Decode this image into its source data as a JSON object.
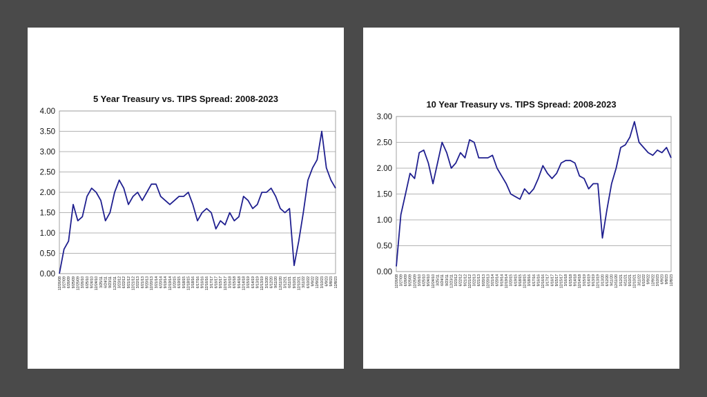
{
  "chart_data": [
    {
      "type": "line",
      "title": "5 Year Treasury vs. TIPS Spread: 2008-2023",
      "xlabel": "",
      "ylabel": "",
      "ylim": [
        0,
        4
      ],
      "yticks": [
        "0.00",
        "0.50",
        "1.00",
        "1.50",
        "2.00",
        "2.50",
        "3.00",
        "3.50",
        "4.00"
      ],
      "grid": true,
      "legend": "none",
      "line_color": "#1f1f8f",
      "x_tick_labels": [
        "12/26/08",
        "3/27/09",
        "6/26/09",
        "9/25/09",
        "12/25/09",
        "3/26/10",
        "6/25/10",
        "9/24/10",
        "12/24/10",
        "3/25/11",
        "6/24/11",
        "9/23/11",
        "12/23/11",
        "3/23/12",
        "6/22/12",
        "9/21/12",
        "12/21/12",
        "3/22/13",
        "6/21/13",
        "9/20/13",
        "12/20/13",
        "3/21/14",
        "6/20/14",
        "9/19/14",
        "12/19/14",
        "3/20/15",
        "6/19/15",
        "9/18/15",
        "12/18/15",
        "3/18/16",
        "6/17/16",
        "9/16/16",
        "12/16/16",
        "3/17/17",
        "6/16/17",
        "9/15/17",
        "12/15/17",
        "3/16/18",
        "6/15/18",
        "9/14/18",
        "12/14/18",
        "3/15/19",
        "6/14/19",
        "9/13/19",
        "12/13/19",
        "3/13/20",
        "6/12/20",
        "9/11/20",
        "12/11/20",
        "3/12/21",
        "6/11/21",
        "9/10/21",
        "12/10/21",
        "3/11/22",
        "6/10/22",
        "9/9/22",
        "12/9/22",
        "3/10/23",
        "6/9/23",
        "9/8/23",
        "12/8/23"
      ],
      "series": [
        {
          "x": [
            "12/26/08",
            "3/27/09",
            "6/26/09",
            "9/25/09",
            "12/25/09",
            "3/26/10",
            "6/25/10",
            "9/24/10",
            "12/24/10",
            "3/25/11",
            "6/24/11",
            "9/23/11",
            "12/23/11",
            "3/23/12",
            "6/22/12",
            "9/21/12",
            "12/21/12",
            "3/22/13",
            "6/21/13",
            "9/20/13",
            "12/20/13",
            "3/21/14",
            "6/20/14",
            "9/19/14",
            "12/19/14",
            "3/20/15",
            "6/19/15",
            "9/18/15",
            "12/18/15",
            "3/18/16",
            "6/17/16",
            "9/16/16",
            "12/16/16",
            "3/17/17",
            "6/16/17",
            "9/15/17",
            "12/15/17",
            "3/16/18",
            "6/15/18",
            "9/14/18",
            "12/14/18",
            "3/15/19",
            "6/14/19",
            "9/13/19",
            "12/13/19",
            "3/13/20",
            "6/12/20",
            "9/11/20",
            "12/11/20",
            "3/12/21",
            "6/11/21",
            "9/10/21",
            "12/10/21",
            "3/11/22",
            "6/10/22",
            "9/9/22",
            "12/9/22",
            "3/10/23",
            "6/9/23",
            "9/8/23",
            "12/8/23"
          ],
          "values": [
            0.0,
            0.6,
            0.8,
            1.7,
            1.3,
            1.4,
            1.9,
            2.1,
            2.0,
            1.8,
            1.3,
            1.5,
            2.0,
            2.3,
            2.1,
            1.7,
            1.9,
            2.0,
            1.8,
            2.0,
            2.2,
            2.2,
            1.9,
            1.8,
            1.7,
            1.8,
            1.9,
            1.9,
            2.0,
            1.7,
            1.3,
            1.5,
            1.6,
            1.5,
            1.1,
            1.3,
            1.2,
            1.5,
            1.3,
            1.4,
            1.9,
            1.8,
            1.6,
            1.7,
            2.0,
            2.0,
            2.1,
            1.9,
            1.6,
            1.5,
            1.6,
            0.2,
            0.8,
            1.5,
            2.3,
            2.6,
            2.8,
            3.5,
            2.6,
            2.3,
            2.1
          ]
        }
      ]
    },
    {
      "type": "line",
      "title": "10 Year Treasury vs. TIPS Spread: 2008-2023",
      "xlabel": "",
      "ylabel": "",
      "ylim": [
        0,
        3
      ],
      "yticks": [
        "0.00",
        "0.50",
        "1.00",
        "1.50",
        "2.00",
        "2.50",
        "3.00"
      ],
      "grid": true,
      "legend": "none",
      "line_color": "#1f1f8f",
      "x_tick_labels": [
        "12/26/08",
        "3/27/09",
        "6/26/09",
        "9/25/09",
        "12/25/09",
        "3/26/10",
        "6/25/10",
        "9/24/10",
        "12/24/10",
        "3/25/11",
        "6/24/11",
        "9/23/11",
        "12/23/11",
        "3/23/12",
        "6/22/12",
        "9/21/12",
        "12/21/12",
        "3/22/13",
        "6/21/13",
        "9/20/13",
        "12/20/13",
        "3/21/14",
        "6/20/14",
        "9/19/14",
        "12/19/14",
        "3/20/15",
        "6/19/15",
        "9/18/15",
        "12/18/15",
        "3/18/16",
        "6/17/16",
        "9/16/16",
        "12/16/16",
        "3/17/17",
        "6/16/17",
        "9/15/17",
        "12/15/17",
        "3/16/18",
        "6/15/18",
        "9/14/18",
        "12/14/18",
        "3/15/19",
        "6/14/19",
        "9/13/19",
        "12/13/19",
        "3/13/20",
        "6/12/20",
        "9/11/20",
        "12/11/20",
        "3/12/21",
        "6/11/21",
        "9/10/21",
        "12/10/21",
        "3/11/22",
        "6/10/22",
        "9/9/22",
        "12/9/22",
        "3/10/23",
        "6/9/23",
        "9/8/23",
        "12/8/23"
      ],
      "series": [
        {
          "x": [
            "12/26/08",
            "3/27/09",
            "6/26/09",
            "9/25/09",
            "12/25/09",
            "3/26/10",
            "6/25/10",
            "9/24/10",
            "12/24/10",
            "3/25/11",
            "6/24/11",
            "9/23/11",
            "12/23/11",
            "3/23/12",
            "6/22/12",
            "9/21/12",
            "12/21/12",
            "3/22/13",
            "6/21/13",
            "9/20/13",
            "12/20/13",
            "3/21/14",
            "6/20/14",
            "9/19/14",
            "12/19/14",
            "3/20/15",
            "6/19/15",
            "9/18/15",
            "12/18/15",
            "3/18/16",
            "6/17/16",
            "9/16/16",
            "12/16/16",
            "3/17/17",
            "6/16/17",
            "9/15/17",
            "12/15/17",
            "3/16/18",
            "6/15/18",
            "9/14/18",
            "12/14/18",
            "3/15/19",
            "6/14/19",
            "9/13/19",
            "12/13/19",
            "3/13/20",
            "6/12/20",
            "9/11/20",
            "12/11/20",
            "3/12/21",
            "6/11/21",
            "9/10/21",
            "12/10/21",
            "3/11/22",
            "6/10/22",
            "9/9/22",
            "12/9/22",
            "3/10/23",
            "6/9/23",
            "9/8/23",
            "12/8/23"
          ],
          "values": [
            0.1,
            1.1,
            1.5,
            1.9,
            1.8,
            2.3,
            2.35,
            2.1,
            1.7,
            2.1,
            2.5,
            2.3,
            2.0,
            2.1,
            2.3,
            2.2,
            2.55,
            2.5,
            2.2,
            2.2,
            2.2,
            2.25,
            2.0,
            1.85,
            1.7,
            1.5,
            1.45,
            1.4,
            1.6,
            1.5,
            1.6,
            1.8,
            2.05,
            1.9,
            1.8,
            1.9,
            2.1,
            2.15,
            2.15,
            2.1,
            1.85,
            1.8,
            1.6,
            1.7,
            1.7,
            0.65,
            1.2,
            1.7,
            2.0,
            2.4,
            2.45,
            2.6,
            2.9,
            2.5,
            2.4,
            2.3,
            2.25,
            2.35,
            2.3,
            2.4,
            2.2
          ]
        }
      ]
    }
  ]
}
